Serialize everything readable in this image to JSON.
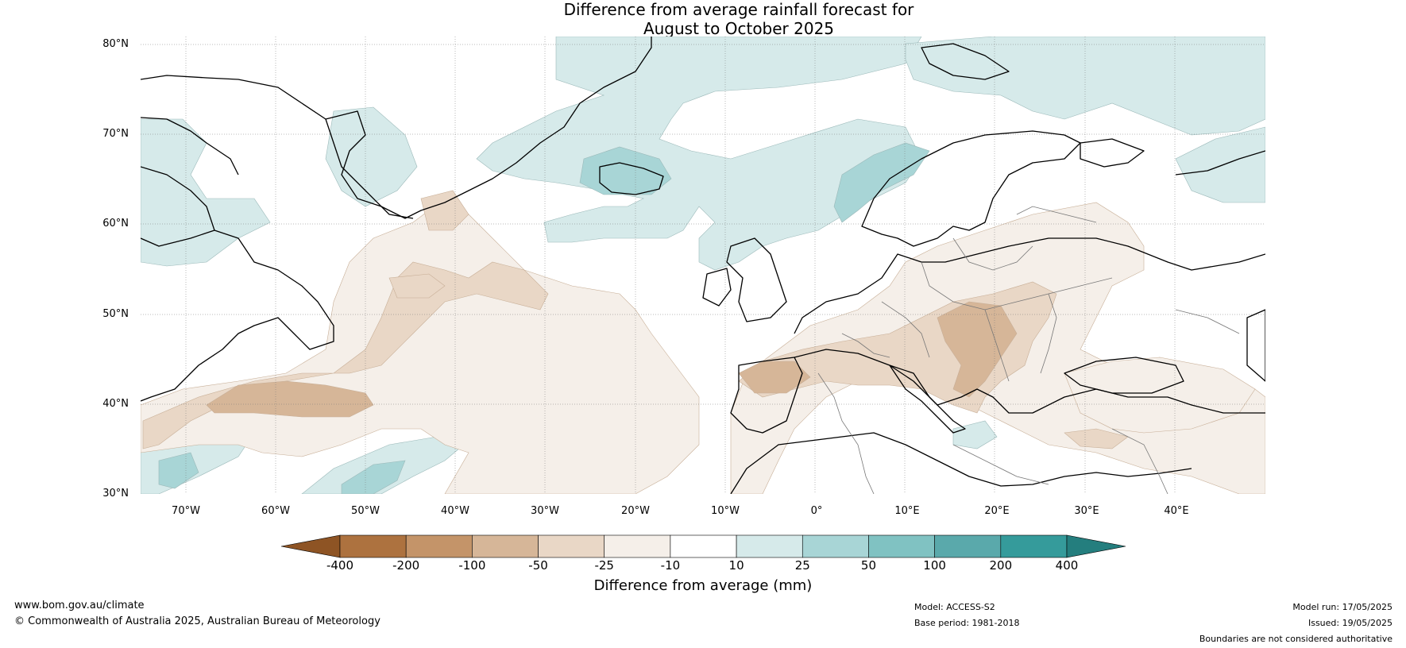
{
  "title": {
    "line1": "Difference from average rainfall forecast for",
    "line2": "August to October 2025"
  },
  "latitude_labels": [
    "80°N",
    "70°N",
    "60°N",
    "50°N",
    "40°N",
    "30°N"
  ],
  "longitude_labels": [
    "70°W",
    "60°W",
    "50°W",
    "40°W",
    "30°W",
    "20°W",
    "10°W",
    "0°",
    "10°E",
    "20°E",
    "30°E",
    "40°E"
  ],
  "map_extent": {
    "lon_min": -75,
    "lon_max": 50,
    "lat_min": 30,
    "lat_max": 81
  },
  "colorbar": {
    "title": "Difference from average (mm)",
    "ticks": [
      "-400",
      "-200",
      "-100",
      "-50",
      "-25",
      "-10",
      "10",
      "25",
      "50",
      "100",
      "200",
      "400"
    ],
    "colors": [
      "#8e5424",
      "#ad723f",
      "#c49469",
      "#d6b698",
      "#e9d7c6",
      "#f5efe9",
      "#ffffff",
      "#d6eaea",
      "#a8d5d6",
      "#80c2c2",
      "#5aa9ab",
      "#359b9b",
      "#247e7e"
    ]
  },
  "footer": {
    "website": "www.bom.gov.au/climate",
    "copyright": "© Commonwealth of Australia 2025, Australian Bureau of Meteorology",
    "model": "Model: ACCESS-S2",
    "base_period": "Base period: 1981-2018",
    "model_run": "Model run: 17/05/2025",
    "issued": "Issued: 19/05/2025",
    "disclaimer": "Boundaries are not considered authoritative"
  }
}
